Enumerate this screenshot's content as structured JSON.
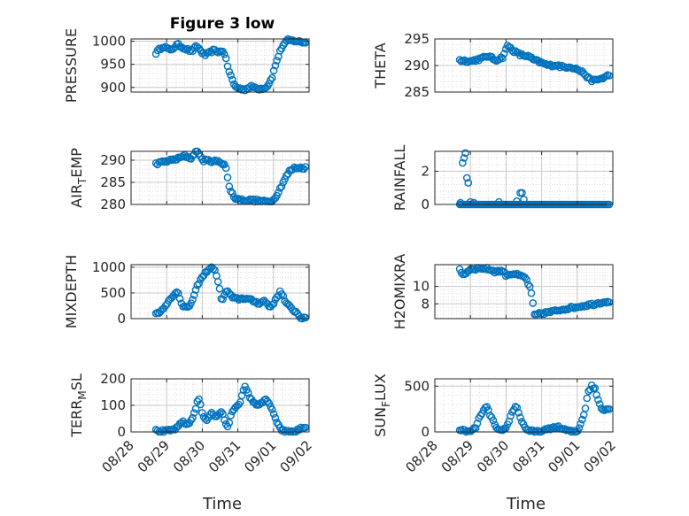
{
  "figure": {
    "title": "Figure 3 low",
    "xlabel": "Time"
  },
  "colors": {
    "marker": "#0072BD",
    "axis": "#262626",
    "grid": "#c8c8c8",
    "minorgrid": "#dedede"
  },
  "chart_data": [
    {
      "id": "pressure",
      "type": "scatter",
      "title": "Figure 3 low",
      "ylabel": "PRESSURE",
      "ylim": [
        890,
        1005
      ],
      "yticks": [
        900,
        950,
        1000
      ],
      "xlim": [
        "08/28",
        "09/02"
      ],
      "grid": true,
      "x_range": [
        0.7,
        4.9
      ],
      "anchors": [
        [
          0.7,
          975
        ],
        [
          0.9,
          990
        ],
        [
          1.1,
          980
        ],
        [
          1.3,
          993
        ],
        [
          1.5,
          985
        ],
        [
          1.7,
          978
        ],
        [
          1.85,
          990
        ],
        [
          2.0,
          975
        ],
        [
          2.1,
          970
        ],
        [
          2.3,
          980
        ],
        [
          2.5,
          977
        ],
        [
          2.6,
          980
        ],
        [
          2.75,
          935
        ],
        [
          2.9,
          905
        ],
        [
          3.0,
          898
        ],
        [
          3.2,
          896
        ],
        [
          3.4,
          902
        ],
        [
          3.6,
          897
        ],
        [
          3.8,
          900
        ],
        [
          3.95,
          920
        ],
        [
          4.1,
          960
        ],
        [
          4.25,
          990
        ],
        [
          4.4,
          1002
        ],
        [
          4.6,
          1001
        ],
        [
          4.8,
          998
        ]
      ]
    },
    {
      "id": "theta",
      "type": "scatter",
      "ylabel": "THETA",
      "ylim": [
        285,
        295
      ],
      "yticks": [
        285,
        290,
        295
      ],
      "xlim": [
        "08/28",
        "09/02"
      ],
      "grid": true,
      "x_range": [
        0.7,
        4.9
      ],
      "anchors": [
        [
          0.7,
          291
        ],
        [
          1.0,
          290.8
        ],
        [
          1.3,
          291.3
        ],
        [
          1.5,
          291.8
        ],
        [
          1.7,
          291
        ],
        [
          1.9,
          291.5
        ],
        [
          2.05,
          293.8
        ],
        [
          2.2,
          292.8
        ],
        [
          2.4,
          292
        ],
        [
          2.6,
          291.8
        ],
        [
          2.8,
          291
        ],
        [
          3.0,
          290.5
        ],
        [
          3.2,
          290
        ],
        [
          3.4,
          290.1
        ],
        [
          3.6,
          289.7
        ],
        [
          3.8,
          289.8
        ],
        [
          4.0,
          289.3
        ],
        [
          4.2,
          288.5
        ],
        [
          4.35,
          287.3
        ],
        [
          4.5,
          287.2
        ],
        [
          4.7,
          287.6
        ],
        [
          4.9,
          288.2
        ]
      ]
    },
    {
      "id": "air_temp",
      "type": "scatter",
      "ylabel": "AIR_TEMP",
      "ylim": [
        280,
        292
      ],
      "yticks": [
        280,
        285,
        290
      ],
      "xlim": [
        "08/28",
        "09/02"
      ],
      "grid": true,
      "x_range": [
        0.7,
        4.9
      ],
      "anchors": [
        [
          0.7,
          289.2
        ],
        [
          1.0,
          289.8
        ],
        [
          1.3,
          290.3
        ],
        [
          1.5,
          291
        ],
        [
          1.7,
          290.4
        ],
        [
          1.85,
          292.7
        ],
        [
          2.0,
          290
        ],
        [
          2.3,
          289.8
        ],
        [
          2.5,
          289.6
        ],
        [
          2.65,
          289
        ],
        [
          2.75,
          284
        ],
        [
          2.9,
          281.5
        ],
        [
          3.1,
          281
        ],
        [
          3.4,
          281
        ],
        [
          3.6,
          280.8
        ],
        [
          3.8,
          280.6
        ],
        [
          4.0,
          281
        ],
        [
          4.15,
          283
        ],
        [
          4.3,
          285.5
        ],
        [
          4.45,
          287.5
        ],
        [
          4.6,
          288.3
        ],
        [
          4.9,
          288.3
        ]
      ]
    },
    {
      "id": "rainfall",
      "type": "scatter",
      "ylabel": "RAINFALL",
      "ylim": [
        0,
        3.2
      ],
      "yticks": [
        0,
        2
      ],
      "xlim": [
        "08/28",
        "09/02"
      ],
      "grid": true,
      "x_range": [
        0.7,
        4.9
      ],
      "extra_points": [
        [
          0.72,
          0.1
        ],
        [
          0.78,
          2.5
        ],
        [
          0.82,
          2.8
        ],
        [
          0.86,
          3.1
        ],
        [
          0.9,
          1.6
        ],
        [
          0.94,
          1.3
        ],
        [
          1.0,
          0.15
        ],
        [
          1.1,
          0.1
        ],
        [
          1.8,
          0.15
        ],
        [
          2.3,
          0.2
        ],
        [
          2.4,
          0.7
        ],
        [
          2.45,
          0.7
        ],
        [
          2.5,
          0.3
        ]
      ]
    },
    {
      "id": "mixdepth",
      "type": "scatter",
      "ylabel": "MIXDEPTH",
      "ylim": [
        0,
        1050
      ],
      "yticks": [
        0,
        500,
        1000
      ],
      "xlim": [
        "08/28",
        "09/02"
      ],
      "grid": true,
      "x_range": [
        0.7,
        4.9
      ],
      "anchors": [
        [
          0.7,
          100
        ],
        [
          0.85,
          150
        ],
        [
          1.0,
          300
        ],
        [
          1.15,
          400
        ],
        [
          1.3,
          550
        ],
        [
          1.45,
          250
        ],
        [
          1.6,
          200
        ],
        [
          1.75,
          400
        ],
        [
          1.9,
          700
        ],
        [
          2.0,
          800
        ],
        [
          2.15,
          950
        ],
        [
          2.3,
          1000
        ],
        [
          2.4,
          850
        ],
        [
          2.55,
          350
        ],
        [
          2.7,
          550
        ],
        [
          2.85,
          400
        ],
        [
          3.0,
          380
        ],
        [
          3.2,
          400
        ],
        [
          3.4,
          350
        ],
        [
          3.6,
          300
        ],
        [
          3.75,
          350
        ],
        [
          3.9,
          220
        ],
        [
          4.05,
          350
        ],
        [
          4.2,
          550
        ],
        [
          4.35,
          300
        ],
        [
          4.5,
          200
        ],
        [
          4.65,
          120
        ],
        [
          4.8,
          0
        ]
      ]
    },
    {
      "id": "h2omixra",
      "type": "scatter",
      "ylabel": "H2OMIXRA",
      "ylim": [
        6.3,
        12.5
      ],
      "yticks": [
        8,
        10
      ],
      "xlim": [
        "08/28",
        "09/02"
      ],
      "grid": true,
      "x_range": [
        0.7,
        4.9
      ],
      "anchors": [
        [
          0.7,
          12
        ],
        [
          0.8,
          11.3
        ],
        [
          1.0,
          12
        ],
        [
          1.3,
          12.1
        ],
        [
          1.5,
          12
        ],
        [
          1.7,
          11.7
        ],
        [
          1.9,
          11.8
        ],
        [
          2.0,
          11.3
        ],
        [
          2.2,
          11.5
        ],
        [
          2.4,
          11.2
        ],
        [
          2.55,
          11
        ],
        [
          2.7,
          9.5
        ],
        [
          2.8,
          6.7
        ],
        [
          3.0,
          6.9
        ],
        [
          3.3,
          7.1
        ],
        [
          3.6,
          7.4
        ],
        [
          3.9,
          7.6
        ],
        [
          4.2,
          7.8
        ],
        [
          4.5,
          8
        ],
        [
          4.7,
          8.2
        ],
        [
          4.9,
          8.3
        ]
      ]
    },
    {
      "id": "terr_msl",
      "type": "scatter",
      "ylabel": "TERR_MSL",
      "ylim": [
        0,
        200
      ],
      "yticks": [
        0,
        100,
        200
      ],
      "xlim": [
        "08/28",
        "09/02"
      ],
      "grid": true,
      "x_range": [
        0.7,
        4.9
      ],
      "anchors": [
        [
          0.7,
          5
        ],
        [
          0.9,
          2
        ],
        [
          1.1,
          5
        ],
        [
          1.3,
          15
        ],
        [
          1.45,
          40
        ],
        [
          1.6,
          25
        ],
        [
          1.75,
          60
        ],
        [
          1.9,
          130
        ],
        [
          2.0,
          70
        ],
        [
          2.1,
          40
        ],
        [
          2.25,
          75
        ],
        [
          2.4,
          55
        ],
        [
          2.55,
          80
        ],
        [
          2.7,
          10
        ],
        [
          2.8,
          60
        ],
        [
          2.9,
          90
        ],
        [
          3.05,
          110
        ],
        [
          3.2,
          170
        ],
        [
          3.3,
          140
        ],
        [
          3.5,
          100
        ],
        [
          3.65,
          110
        ],
        [
          3.8,
          120
        ],
        [
          3.95,
          90
        ],
        [
          4.1,
          30
        ],
        [
          4.25,
          5
        ],
        [
          4.4,
          0
        ],
        [
          4.6,
          2
        ],
        [
          4.8,
          15
        ]
      ]
    },
    {
      "id": "sun_flux",
      "type": "scatter",
      "ylabel": "SUN_FLUX",
      "ylim": [
        0,
        580
      ],
      "yticks": [
        0,
        500
      ],
      "xlim": [
        "08/28",
        "09/02"
      ],
      "grid": true,
      "x_range": [
        0.7,
        4.9
      ],
      "anchors": [
        [
          0.7,
          30
        ],
        [
          0.85,
          5
        ],
        [
          1.0,
          0
        ],
        [
          1.15,
          50
        ],
        [
          1.3,
          200
        ],
        [
          1.45,
          270
        ],
        [
          1.6,
          150
        ],
        [
          1.75,
          20
        ],
        [
          1.9,
          5
        ],
        [
          2.05,
          80
        ],
        [
          2.2,
          250
        ],
        [
          2.3,
          280
        ],
        [
          2.45,
          100
        ],
        [
          2.6,
          20
        ],
        [
          2.8,
          0
        ],
        [
          3.0,
          5
        ],
        [
          3.2,
          30
        ],
        [
          3.4,
          60
        ],
        [
          3.6,
          30
        ],
        [
          3.8,
          5
        ],
        [
          4.0,
          0
        ],
        [
          4.2,
          200
        ],
        [
          4.3,
          430
        ],
        [
          4.4,
          500
        ],
        [
          4.5,
          470
        ],
        [
          4.6,
          330
        ],
        [
          4.7,
          250
        ]
      ]
    }
  ],
  "x_ticks": [
    "08/28",
    "08/29",
    "08/30",
    "08/31",
    "09/01",
    "09/02"
  ]
}
